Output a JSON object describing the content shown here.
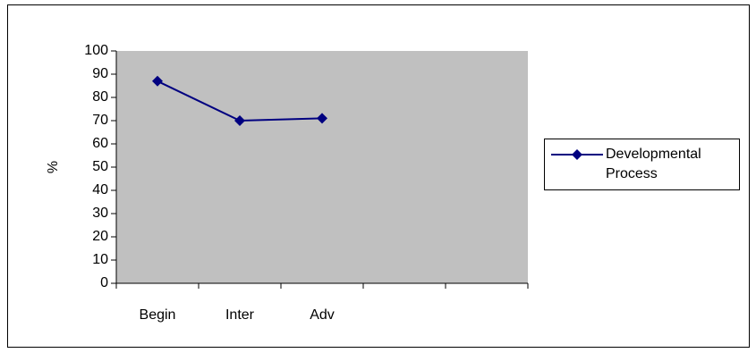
{
  "chart_data": {
    "type": "line",
    "ylabel": "%",
    "categories": [
      "Begin",
      "Inter",
      "Adv",
      null,
      null
    ],
    "series": [
      {
        "name": "Developmental Process",
        "color": "#000080",
        "values": [
          87,
          70,
          71,
          null,
          null
        ]
      }
    ],
    "ylim": [
      0,
      100
    ],
    "yticks": [
      0,
      10,
      20,
      30,
      40,
      50,
      60,
      70,
      80,
      90,
      100
    ],
    "plot_background": "#c0c0c0",
    "legend": "right"
  }
}
